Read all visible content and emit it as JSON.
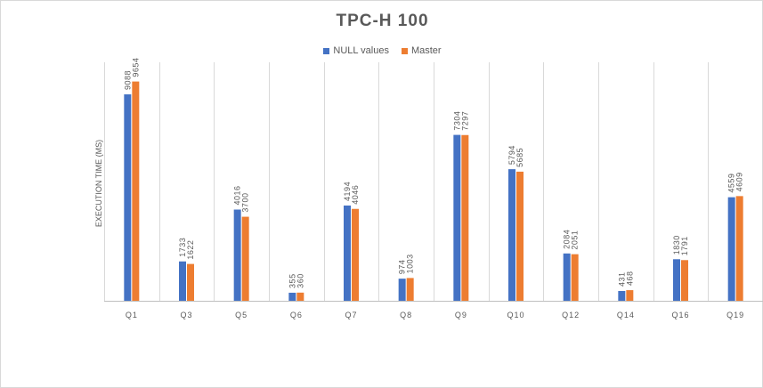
{
  "chart_data": {
    "type": "bar",
    "title": "TPC-H 100",
    "ylabel": "EXECUTION TIME (MS)",
    "xlabel": "",
    "ylim": [
      0,
      10500
    ],
    "grid": "vertical",
    "legend_position": "top",
    "categories": [
      "Q1",
      "Q3",
      "Q5",
      "Q6",
      "Q7",
      "Q8",
      "Q9",
      "Q10",
      "Q12",
      "Q14",
      "Q16",
      "Q19"
    ],
    "series": [
      {
        "name": "NULL values",
        "color": "#4472c4",
        "values": [
          9088,
          1733,
          4016,
          355,
          4194,
          974,
          7304,
          5794,
          2084,
          431,
          1830,
          4559
        ]
      },
      {
        "name": "Master",
        "color": "#ed7d31",
        "values": [
          9654,
          1622,
          3700,
          360,
          4046,
          1003,
          7297,
          5685,
          2051,
          468,
          1791,
          4609
        ]
      }
    ]
  }
}
